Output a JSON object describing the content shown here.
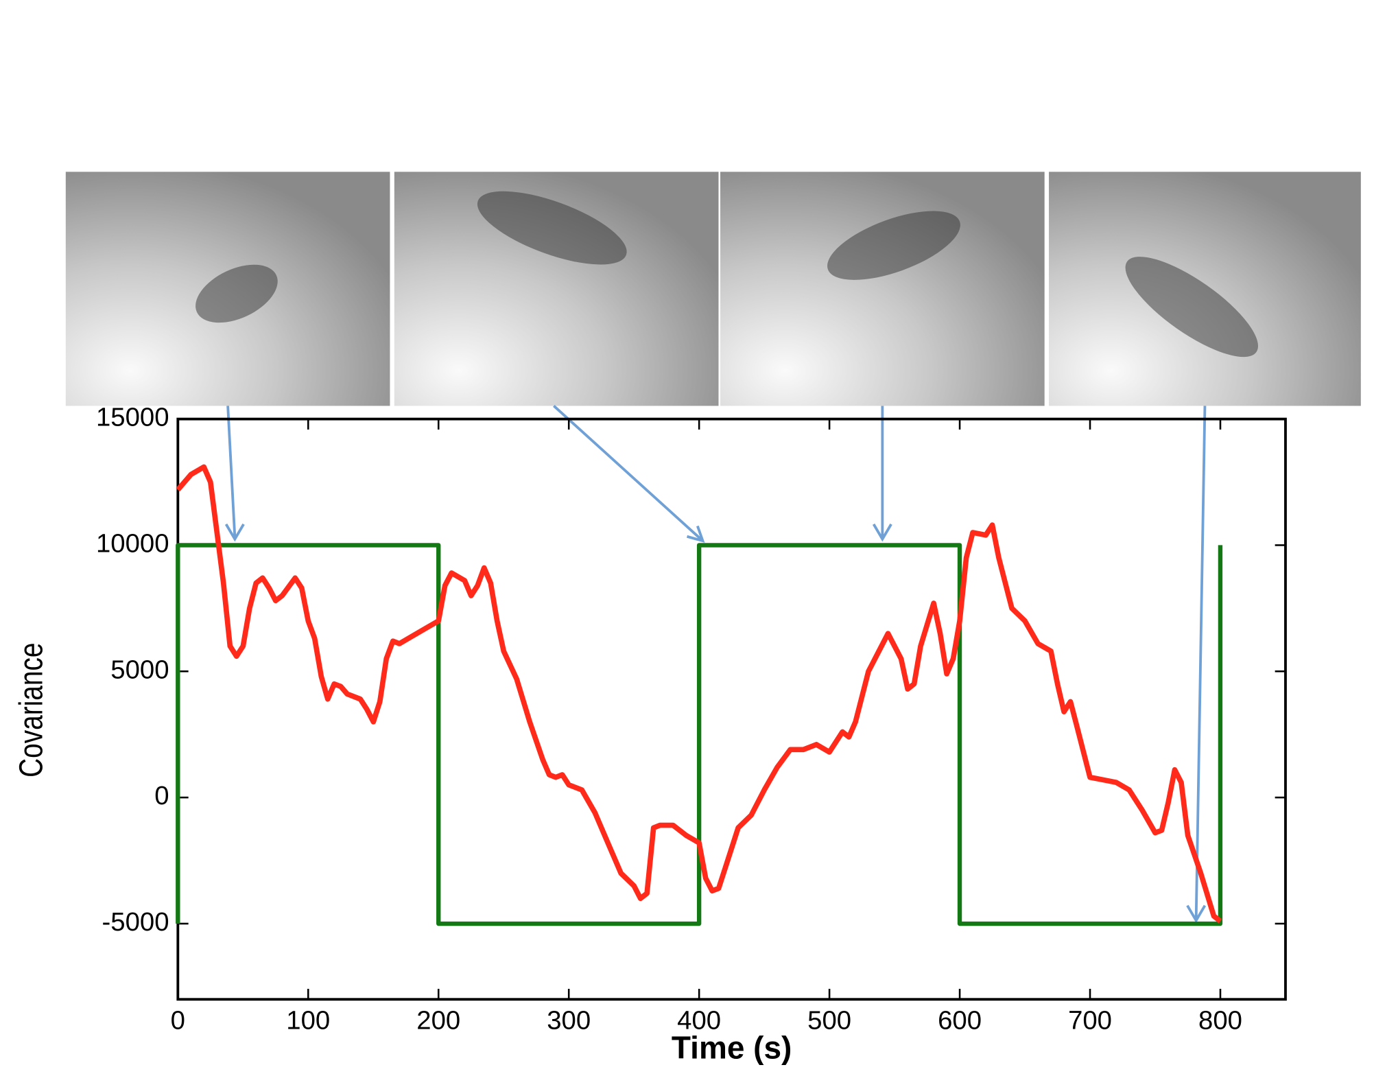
{
  "chart_data": {
    "type": "line",
    "xlabel": "Time (s)",
    "ylabel": "Covariance",
    "xlim": [
      0,
      850
    ],
    "ylim": [
      -8000,
      15000
    ],
    "xticks": [
      0,
      100,
      200,
      300,
      400,
      500,
      600,
      700,
      800
    ],
    "yticks": [
      -5000,
      0,
      5000,
      10000,
      15000
    ],
    "grid": false,
    "series": [
      {
        "color": "#ff2a1a",
        "x": [
          0,
          10,
          20,
          25,
          30,
          35,
          40,
          45,
          50,
          55,
          60,
          65,
          70,
          75,
          80,
          90,
          95,
          100,
          105,
          110,
          115,
          120,
          125,
          130,
          140,
          145,
          150,
          155,
          160,
          165,
          170,
          180,
          190,
          200,
          205,
          210,
          220,
          225,
          230,
          235,
          240,
          245,
          250,
          260,
          270,
          280,
          285,
          290,
          295,
          300,
          310,
          320,
          330,
          340,
          350,
          355,
          360,
          365,
          370,
          380,
          390,
          400,
          405,
          410,
          415,
          420,
          430,
          440,
          450,
          460,
          470,
          480,
          490,
          500,
          510,
          515,
          520,
          530,
          545,
          555,
          560,
          565,
          570,
          580,
          585,
          590,
          595,
          600,
          605,
          610,
          620,
          625,
          630,
          640,
          650,
          660,
          670,
          675,
          680,
          685,
          690,
          700,
          710,
          720,
          730,
          740,
          750,
          755,
          760,
          765,
          770,
          775,
          785,
          795,
          800
        ],
        "values": [
          12200,
          12800,
          13100,
          12500,
          10500,
          8500,
          6000,
          5600,
          6000,
          7500,
          8500,
          8700,
          8300,
          7800,
          8000,
          8700,
          8300,
          7000,
          6300,
          4800,
          3900,
          4500,
          4400,
          4100,
          3900,
          3500,
          3000,
          3800,
          5500,
          6200,
          6100,
          6400,
          6700,
          7000,
          8400,
          8900,
          8600,
          8000,
          8400,
          9100,
          8500,
          7000,
          5800,
          4700,
          3000,
          1500,
          900,
          800,
          900,
          500,
          300,
          -600,
          -1800,
          -3000,
          -3500,
          -4000,
          -3800,
          -1200,
          -1100,
          -1100,
          -1500,
          -1800,
          -3200,
          -3700,
          -3600,
          -2800,
          -1200,
          -700,
          300,
          1200,
          1900,
          1900,
          2100,
          1800,
          2600,
          2400,
          3000,
          5000,
          6500,
          5500,
          4300,
          4500,
          6000,
          7700,
          6500,
          4900,
          5500,
          7000,
          9500,
          10500,
          10400,
          10800,
          9500,
          7500,
          7000,
          6100,
          5800,
          4500,
          3400,
          3800,
          2800,
          800,
          700,
          600,
          300,
          -500,
          -1400,
          -1300,
          -200,
          1100,
          600,
          -1500,
          -3000,
          -4700,
          -4900
        ]
      },
      {
        "color": "#147814",
        "x": [
          0,
          0,
          200,
          200,
          400,
          400,
          600,
          600,
          800,
          800
        ],
        "values": [
          -5000,
          10000,
          10000,
          -5000,
          -5000,
          10000,
          10000,
          -5000,
          -5000,
          10000
        ]
      }
    ]
  }
}
